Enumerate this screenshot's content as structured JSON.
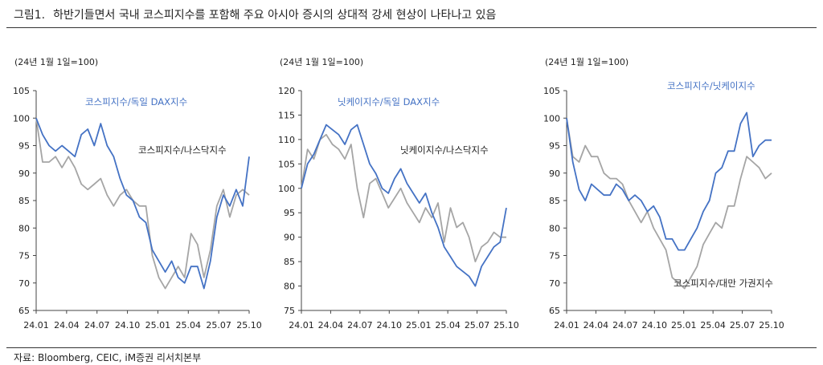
{
  "figure": {
    "number": "그림1.",
    "title": "하반기들면서 국내 코스피지수를 포함해 주요 아시아 증시의 상대적 강세 현상이 나타나고 있음",
    "source": "자료: Bloomberg, CEIC, iM증권 리서치본부"
  },
  "colors": {
    "blue": "#4472C4",
    "gray": "#A5A5A5",
    "axis": "#444444"
  },
  "chart_data": [
    {
      "type": "line",
      "unit": "(24년 1월 1일=100)",
      "ylim": [
        65,
        105
      ],
      "yticks": [
        "105",
        "100",
        "95",
        "90",
        "85",
        "80",
        "75",
        "70",
        "65"
      ],
      "xticks": [
        "24.01",
        "24.04",
        "24.07",
        "24.10",
        "25.01",
        "25.04",
        "25.07",
        "25.10"
      ],
      "series": [
        {
          "name": "코스피지수/독일 DAX지수",
          "color": "blue",
          "values": [
            100,
            97,
            95,
            94,
            95,
            94,
            93,
            97,
            98,
            95,
            99,
            95,
            93,
            89,
            86,
            85,
            82,
            81,
            76,
            74,
            72,
            74,
            71,
            70,
            73,
            73,
            69,
            74,
            82,
            86,
            84,
            87,
            84,
            93
          ]
        },
        {
          "name": "코스피지수/나스닥지수",
          "color": "gray",
          "values": [
            100,
            92,
            92,
            93,
            91,
            93,
            91,
            88,
            87,
            88,
            89,
            86,
            84,
            86,
            87,
            85,
            84,
            84,
            75,
            71,
            69,
            71,
            73,
            71,
            79,
            77,
            71,
            76,
            84,
            87,
            82,
            86,
            87,
            86
          ]
        }
      ]
    },
    {
      "type": "line",
      "unit": "(24년 1월 1일=100)",
      "ylim": [
        75,
        120
      ],
      "yticks": [
        "120",
        "115",
        "110",
        "105",
        "100",
        "95",
        "90",
        "85",
        "80",
        "75"
      ],
      "xticks": [
        "24.01",
        "24.04",
        "24.07",
        "24.10",
        "25.01",
        "25.04",
        "25.07",
        "25.10"
      ],
      "series": [
        {
          "name": "닛케이지수/독일 DAX지수",
          "color": "blue",
          "values": [
            100,
            105,
            107,
            110,
            113,
            112,
            111,
            109,
            112,
            113,
            109,
            105,
            103,
            100,
            99,
            102,
            104,
            101,
            99,
            97,
            99,
            95,
            92,
            88,
            86,
            84,
            83,
            82,
            80,
            84,
            86,
            88,
            89,
            96
          ]
        },
        {
          "name": "닛케이지수/나스닥지수",
          "color": "gray",
          "values": [
            100,
            108,
            106,
            110,
            111,
            109,
            108,
            106,
            109,
            100,
            94,
            101,
            102,
            99,
            96,
            98,
            100,
            97,
            95,
            93,
            96,
            94,
            97,
            89,
            96,
            92,
            93,
            90,
            85,
            88,
            89,
            91,
            90,
            90
          ]
        }
      ]
    },
    {
      "type": "line",
      "unit": "(24년 1월 1일=100)",
      "ylim": [
        65,
        105
      ],
      "yticks": [
        "105",
        "100",
        "95",
        "90",
        "85",
        "80",
        "75",
        "70",
        "65"
      ],
      "xticks": [
        "24.01",
        "24.04",
        "24.07",
        "24.10",
        "25.01",
        "25.04",
        "25.07",
        "25.10"
      ],
      "series": [
        {
          "name": "코스피지수/닛케이지수",
          "color": "blue",
          "values": [
            100,
            92,
            87,
            85,
            88,
            87,
            86,
            86,
            88,
            87,
            85,
            86,
            85,
            83,
            84,
            82,
            78,
            78,
            76,
            76,
            78,
            80,
            83,
            85,
            90,
            91,
            94,
            94,
            99,
            101,
            93,
            95,
            96,
            96
          ]
        },
        {
          "name": "코스피지수/대만 가권지수",
          "color": "gray",
          "values": [
            100,
            93,
            92,
            95,
            93,
            93,
            90,
            89,
            89,
            88,
            85,
            83,
            81,
            83,
            80,
            78,
            76,
            71,
            70,
            69,
            71,
            73,
            77,
            79,
            81,
            80,
            84,
            84,
            89,
            93,
            92,
            91,
            89,
            90
          ]
        }
      ]
    }
  ]
}
